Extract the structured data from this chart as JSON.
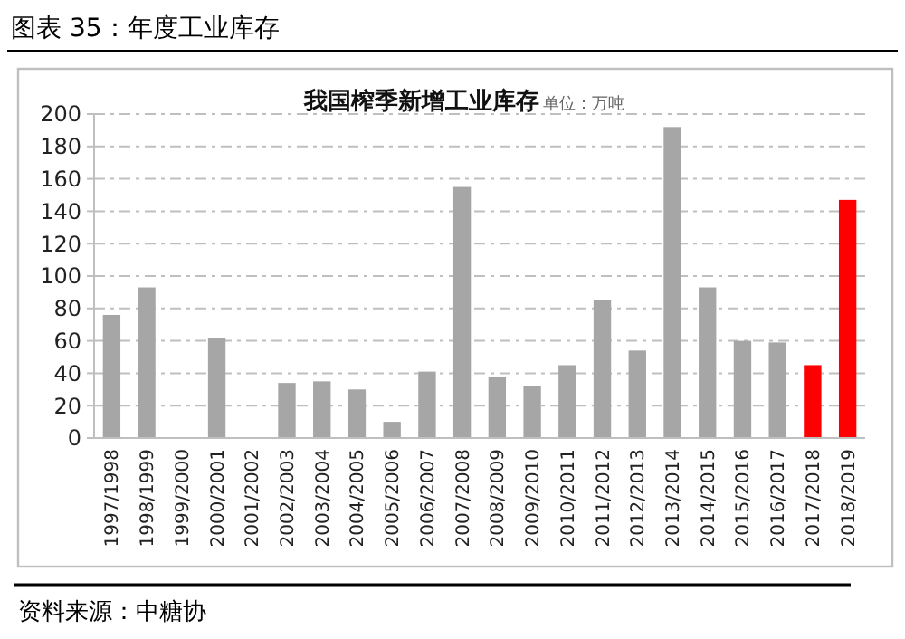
{
  "chart_data": {
    "type": "bar",
    "title": "图表 35：年度工业库存",
    "subtitle": "我国榨季新增工业库存",
    "ylabel": "单位：万吨",
    "categories": [
      "1997/1998",
      "1998/1999",
      "1999/2000",
      "2000/2001",
      "2001/2002",
      "2002/2003",
      "2003/2004",
      "2004/2005",
      "2005/2006",
      "2006/2007",
      "2007/2008",
      "2008/2009",
      "2009/2010",
      "2010/2011",
      "2011/2012",
      "2012/2013",
      "2013/2014",
      "2014/2015",
      "2015/2016",
      "2016/2017",
      "2017/2018",
      "2018/2019"
    ],
    "values": [
      76,
      93,
      0,
      62,
      0,
      34,
      35,
      30,
      10,
      41,
      155,
      38,
      32,
      45,
      85,
      54,
      192,
      93,
      60,
      59,
      45,
      147
    ],
    "colors": [
      "#a6a6a6",
      "#a6a6a6",
      "#a6a6a6",
      "#a6a6a6",
      "#a6a6a6",
      "#a6a6a6",
      "#a6a6a6",
      "#a6a6a6",
      "#a6a6a6",
      "#a6a6a6",
      "#a6a6a6",
      "#a6a6a6",
      "#a6a6a6",
      "#a6a6a6",
      "#a6a6a6",
      "#a6a6a6",
      "#a6a6a6",
      "#a6a6a6",
      "#a6a6a6",
      "#a6a6a6",
      "#ff0000",
      "#ff0000"
    ],
    "ylim": [
      0,
      200
    ],
    "yticks": [
      0,
      20,
      40,
      60,
      80,
      100,
      120,
      140,
      160,
      180,
      200
    ],
    "grid": "y",
    "annotations": [
      "资料来源：中糖协"
    ]
  }
}
